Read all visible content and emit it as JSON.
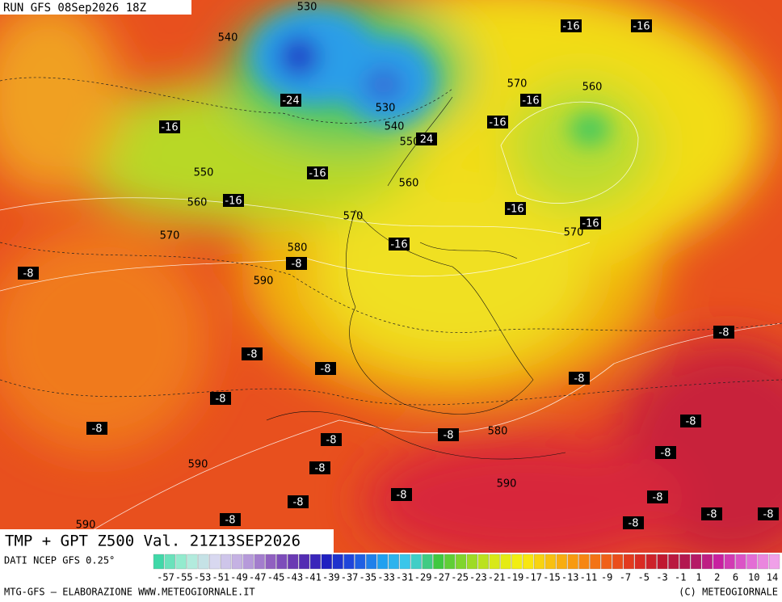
{
  "header": {
    "run": "RUN GFS 08Sep2026 18Z",
    "title": "TMP + GPT Z500 Val. 21Z13SEP2026"
  },
  "map_labels": [
    "530",
    "540",
    "-16",
    "-16",
    "570",
    "560",
    "-24",
    "530",
    "-16",
    "-16",
    "540",
    "-16",
    "550",
    "24",
    "550",
    "-16",
    "560",
    "560",
    "-16",
    "570",
    "-16",
    "570",
    "-16",
    "570",
    "580",
    "-16",
    "-8",
    "-8",
    "590",
    "-8",
    "-8",
    "-8",
    "-8",
    "-8",
    "-8",
    "-8",
    "-8",
    "580",
    "-8",
    "-8",
    "590",
    "-8",
    "590",
    "-8",
    "-8",
    "-8",
    "-8",
    "-8",
    "-8",
    "590",
    "-8"
  ],
  "legend": {
    "source": "DATI NCEP GFS 0.25°",
    "labels": [
      "-57",
      "-55",
      "-53",
      "-51",
      "-49",
      "-47",
      "-45",
      "-43",
      "-41",
      "-39",
      "-37",
      "-35",
      "-33",
      "-31",
      "-29",
      "-27",
      "-25",
      "-23",
      "-21",
      "-19",
      "-17",
      "-15",
      "-13",
      "-11",
      "-9",
      "-7",
      "-5",
      "-3",
      "-1",
      "1",
      "2",
      "6",
      "10",
      "14"
    ]
  },
  "footer": {
    "left": "MTG-GFS – ELABORAZIONE WWW.METEOGIORNALE.IT",
    "right": "(C) METEOGIORNALE"
  }
}
